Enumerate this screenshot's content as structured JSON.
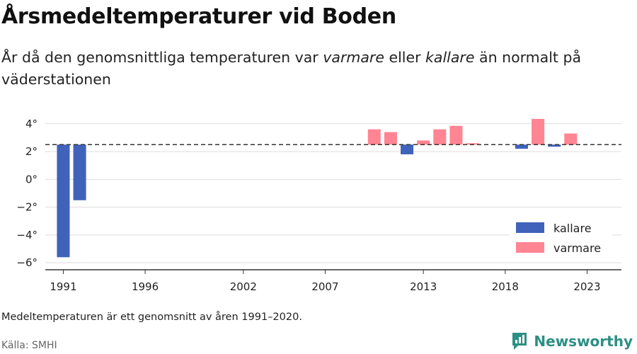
{
  "title": "Årsmedeltemperaturer vid Boden",
  "subtitle": {
    "part1": "År då den genomsnittliga temperaturen var ",
    "warmer": "varmare",
    "part2": " eller ",
    "colder": "kallare",
    "part3": " än normalt på väderstationen"
  },
  "note": "Medeltemperaturen är ett genomsnitt av åren 1991–2020.",
  "source": "Källa: SMHI",
  "brand": {
    "name": "Newsworthy",
    "icon": "newsworthy-logo-icon"
  },
  "colors": {
    "kallare": "#4062bb",
    "varmare": "#ff8593",
    "grid": "#dddddd",
    "baseline": "#333333"
  },
  "chart_data": {
    "type": "bar",
    "baseline": 2.5,
    "ylim": [
      -6.5,
      4.6
    ],
    "yticks": [
      -6,
      -4,
      -2,
      0,
      2,
      4
    ],
    "ytick_labels": [
      "−6°",
      "−4°",
      "−2°",
      "0°",
      "2°",
      "4°"
    ],
    "xlim": [
      1989.9,
      2025.1
    ],
    "xticks": [
      1991,
      1996,
      2002,
      2007,
      2013,
      2018,
      2023
    ],
    "xtick_labels": [
      "1991",
      "1996",
      "2002",
      "2007",
      "2013",
      "2018",
      "2023"
    ],
    "legend": {
      "position": "bottom-right",
      "entries": [
        {
          "label": "kallare",
          "color": "#4062bb"
        },
        {
          "label": "varmare",
          "color": "#ff8593"
        }
      ]
    },
    "series": [
      {
        "name": "kallare",
        "points": [
          {
            "x": 1991,
            "y": -5.6
          },
          {
            "x": 1992,
            "y": -1.5
          },
          {
            "x": 2012,
            "y": 1.8
          },
          {
            "x": 2019,
            "y": 2.2
          },
          {
            "x": 2021,
            "y": 2.35
          }
        ]
      },
      {
        "name": "varmare",
        "points": [
          {
            "x": 2010,
            "y": 3.6
          },
          {
            "x": 2011,
            "y": 3.4
          },
          {
            "x": 2013,
            "y": 2.8
          },
          {
            "x": 2014,
            "y": 3.6
          },
          {
            "x": 2015,
            "y": 3.85
          },
          {
            "x": 2016,
            "y": 2.6
          },
          {
            "x": 2020,
            "y": 4.35
          },
          {
            "x": 2022,
            "y": 3.3
          }
        ]
      }
    ]
  }
}
